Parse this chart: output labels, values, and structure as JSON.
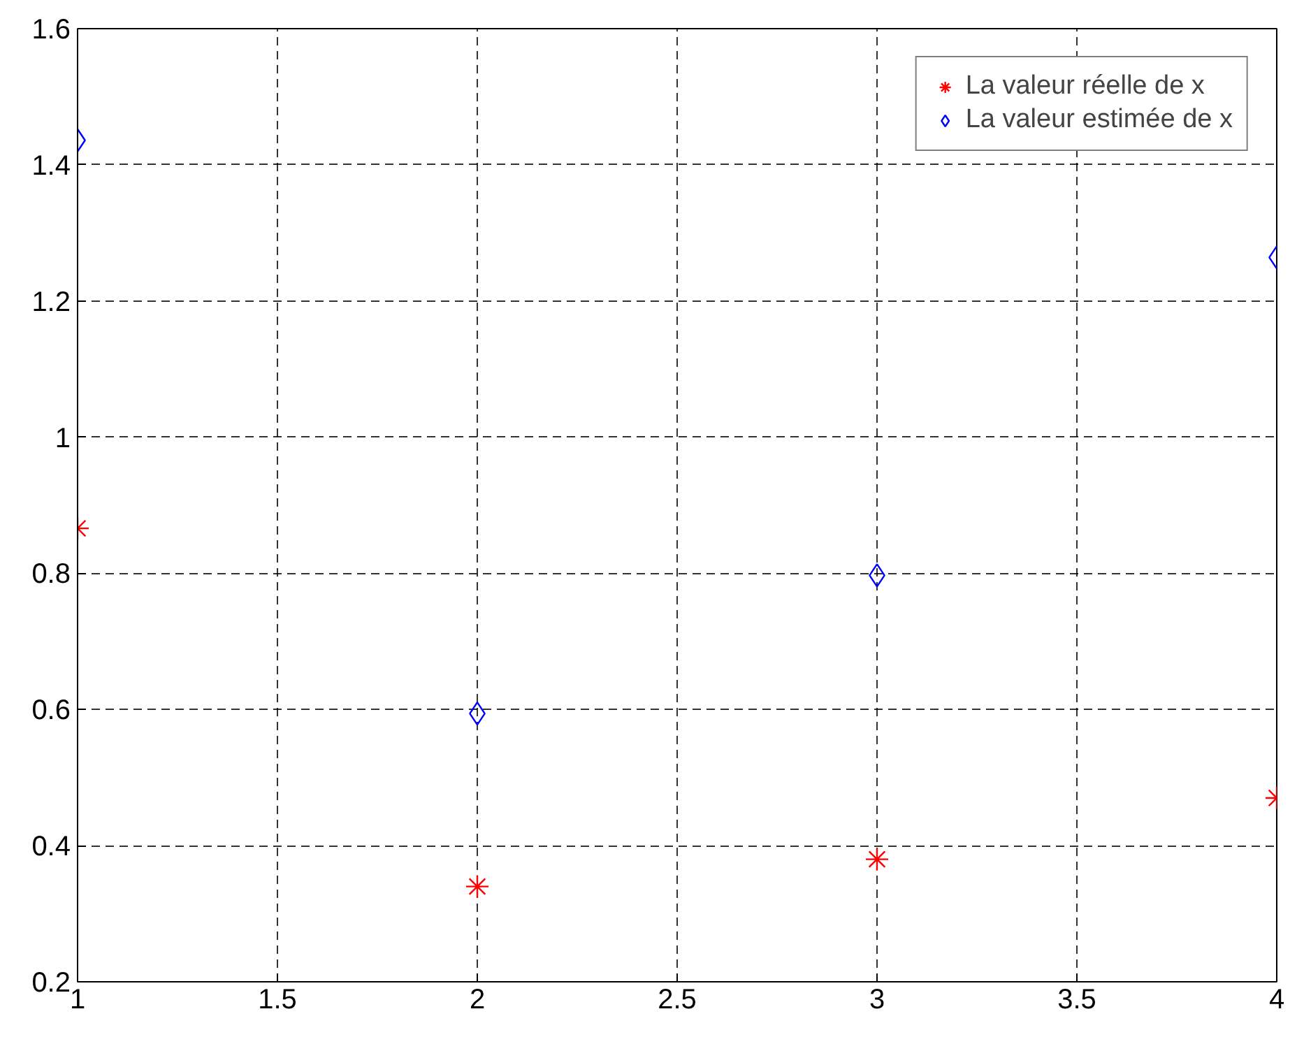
{
  "chart_data": {
    "type": "scatter",
    "x": [
      1,
      2,
      3,
      4
    ],
    "series": [
      {
        "name": "La valeur réelle de x",
        "color": "#ff0000",
        "marker": "cross",
        "values": [
          0.866,
          0.34,
          0.38,
          0.47
        ]
      },
      {
        "name": "La valeur estimée de x",
        "color": "#0000ff",
        "marker": "diamond",
        "values": [
          1.436,
          0.594,
          0.797,
          1.264
        ]
      }
    ],
    "xlim": [
      1,
      4
    ],
    "xticks": [
      1,
      1.5,
      2,
      2.5,
      3,
      3.5,
      4
    ],
    "ylim": [
      0.2,
      1.6
    ],
    "yticks": [
      0.2,
      0.4,
      0.6,
      0.8,
      1,
      1.2,
      1.4,
      1.6
    ],
    "grid": true,
    "legend": "top right"
  }
}
